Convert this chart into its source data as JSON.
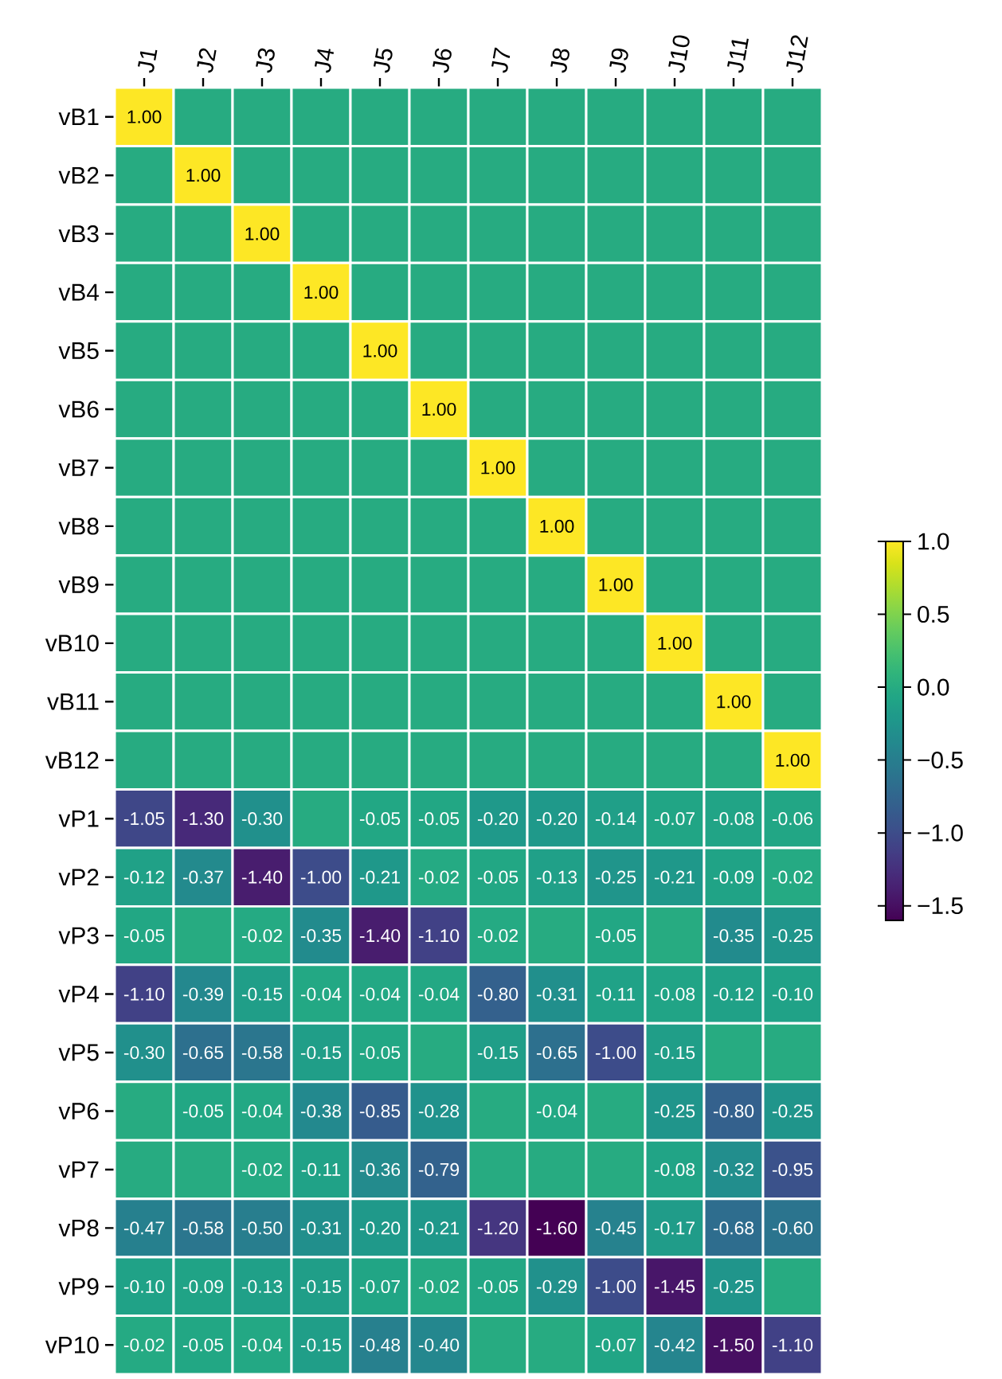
{
  "chart_data": {
    "type": "heatmap",
    "categories": [
      "J1",
      "J2",
      "J3",
      "J4",
      "J5",
      "J6",
      "J7",
      "J8",
      "J9",
      "J10",
      "J11",
      "J12"
    ],
    "y_categories": [
      "vB1",
      "vB2",
      "vB3",
      "vB4",
      "vB5",
      "vB6",
      "vB7",
      "vB8",
      "vB9",
      "vB10",
      "vB11",
      "vB12",
      "vP1",
      "vP2",
      "vP3",
      "vP4",
      "vP5",
      "vP6",
      "vP7",
      "vP8",
      "vP9",
      "vP10"
    ],
    "cells": [
      [
        1.0,
        0,
        0,
        0,
        0,
        0,
        0,
        0,
        0,
        0,
        0,
        0
      ],
      [
        0,
        1.0,
        0,
        0,
        0,
        0,
        0,
        0,
        0,
        0,
        0,
        0
      ],
      [
        0,
        0,
        1.0,
        0,
        0,
        0,
        0,
        0,
        0,
        0,
        0,
        0
      ],
      [
        0,
        0,
        0,
        1.0,
        0,
        0,
        0,
        0,
        0,
        0,
        0,
        0
      ],
      [
        0,
        0,
        0,
        0,
        1.0,
        0,
        0,
        0,
        0,
        0,
        0,
        0
      ],
      [
        0,
        0,
        0,
        0,
        0,
        1.0,
        0,
        0,
        0,
        0,
        0,
        0
      ],
      [
        0,
        0,
        0,
        0,
        0,
        0,
        1.0,
        0,
        0,
        0,
        0,
        0
      ],
      [
        0,
        0,
        0,
        0,
        0,
        0,
        0,
        1.0,
        0,
        0,
        0,
        0
      ],
      [
        0,
        0,
        0,
        0,
        0,
        0,
        0,
        0,
        1.0,
        0,
        0,
        0
      ],
      [
        0,
        0,
        0,
        0,
        0,
        0,
        0,
        0,
        0,
        1.0,
        0,
        0
      ],
      [
        0,
        0,
        0,
        0,
        0,
        0,
        0,
        0,
        0,
        0,
        1.0,
        0
      ],
      [
        0,
        0,
        0,
        0,
        0,
        0,
        0,
        0,
        0,
        0,
        0,
        1.0
      ],
      [
        -1.05,
        -1.3,
        -0.3,
        0,
        -0.05,
        -0.05,
        -0.2,
        -0.2,
        -0.14,
        -0.07,
        -0.08,
        -0.06
      ],
      [
        -0.12,
        -0.37,
        -1.4,
        -1.0,
        -0.21,
        -0.02,
        -0.05,
        -0.13,
        -0.25,
        -0.21,
        -0.09,
        -0.02
      ],
      [
        -0.05,
        0,
        -0.02,
        -0.35,
        -1.4,
        -1.1,
        -0.02,
        0,
        -0.05,
        0,
        -0.35,
        -0.25
      ],
      [
        -1.1,
        -0.39,
        -0.15,
        -0.04,
        -0.04,
        -0.04,
        -0.8,
        -0.31,
        -0.11,
        -0.08,
        -0.12,
        -0.1
      ],
      [
        -0.3,
        -0.65,
        -0.58,
        -0.15,
        -0.05,
        0,
        -0.15,
        -0.65,
        -1.0,
        -0.15,
        0,
        0
      ],
      [
        0,
        -0.05,
        -0.04,
        -0.38,
        -0.85,
        -0.28,
        0,
        -0.04,
        0,
        -0.25,
        -0.8,
        -0.25
      ],
      [
        0,
        0,
        -0.02,
        -0.11,
        -0.36,
        -0.79,
        0,
        0,
        0,
        -0.08,
        -0.32,
        -0.95
      ],
      [
        -0.47,
        -0.58,
        -0.5,
        -0.31,
        -0.2,
        -0.21,
        -1.2,
        -1.6,
        -0.45,
        -0.17,
        -0.68,
        -0.6
      ],
      [
        -0.1,
        -0.09,
        -0.13,
        -0.15,
        -0.07,
        -0.02,
        -0.05,
        -0.29,
        -1.0,
        -1.45,
        -0.25,
        0
      ],
      [
        -0.02,
        -0.05,
        -0.04,
        -0.15,
        -0.48,
        -0.4,
        0,
        0,
        -0.07,
        -0.42,
        -1.5,
        -1.1
      ]
    ],
    "cell_labels": [
      [
        "1.00",
        null,
        null,
        null,
        null,
        null,
        null,
        null,
        null,
        null,
        null,
        null
      ],
      [
        null,
        "1.00",
        null,
        null,
        null,
        null,
        null,
        null,
        null,
        null,
        null,
        null
      ],
      [
        null,
        null,
        "1.00",
        null,
        null,
        null,
        null,
        null,
        null,
        null,
        null,
        null
      ],
      [
        null,
        null,
        null,
        "1.00",
        null,
        null,
        null,
        null,
        null,
        null,
        null,
        null
      ],
      [
        null,
        null,
        null,
        null,
        "1.00",
        null,
        null,
        null,
        null,
        null,
        null,
        null
      ],
      [
        null,
        null,
        null,
        null,
        null,
        "1.00",
        null,
        null,
        null,
        null,
        null,
        null
      ],
      [
        null,
        null,
        null,
        null,
        null,
        null,
        "1.00",
        null,
        null,
        null,
        null,
        null
      ],
      [
        null,
        null,
        null,
        null,
        null,
        null,
        null,
        "1.00",
        null,
        null,
        null,
        null
      ],
      [
        null,
        null,
        null,
        null,
        null,
        null,
        null,
        null,
        "1.00",
        null,
        null,
        null
      ],
      [
        null,
        null,
        null,
        null,
        null,
        null,
        null,
        null,
        null,
        "1.00",
        null,
        null
      ],
      [
        null,
        null,
        null,
        null,
        null,
        null,
        null,
        null,
        null,
        null,
        "1.00",
        null
      ],
      [
        null,
        null,
        null,
        null,
        null,
        null,
        null,
        null,
        null,
        null,
        null,
        "1.00"
      ],
      [
        "-1.05",
        "-1.30",
        "-0.30",
        null,
        "-0.05",
        "-0.05",
        "-0.20",
        "-0.20",
        "-0.14",
        "-0.07",
        "-0.08",
        "-0.06"
      ],
      [
        "-0.12",
        "-0.37",
        "-1.40",
        "-1.00",
        "-0.21",
        "-0.02",
        "-0.05",
        "-0.13",
        "-0.25",
        "-0.21",
        "-0.09",
        "-0.02"
      ],
      [
        "-0.05",
        null,
        "-0.02",
        "-0.35",
        "-1.40",
        "-1.10",
        "-0.02",
        null,
        "-0.05",
        null,
        "-0.35",
        "-0.25"
      ],
      [
        "-1.10",
        "-0.39",
        "-0.15",
        "-0.04",
        "-0.04",
        "-0.04",
        "-0.80",
        "-0.31",
        "-0.11",
        "-0.08",
        "-0.12",
        "-0.10"
      ],
      [
        "-0.30",
        "-0.65",
        "-0.58",
        "-0.15",
        "-0.05",
        null,
        "-0.15",
        "-0.65",
        "-1.00",
        "-0.15",
        null,
        null
      ],
      [
        null,
        "-0.05",
        "-0.04",
        "-0.38",
        "-0.85",
        "-0.28",
        null,
        "-0.04",
        null,
        "-0.25",
        "-0.80",
        "-0.25"
      ],
      [
        null,
        null,
        "-0.02",
        "-0.11",
        "-0.36",
        "-0.79",
        null,
        null,
        null,
        "-0.08",
        "-0.32",
        "-0.95"
      ],
      [
        "-0.47",
        "-0.58",
        "-0.50",
        "-0.31",
        "-0.20",
        "-0.21",
        "-1.20",
        "-1.60",
        "-0.45",
        "-0.17",
        "-0.68",
        "-0.60"
      ],
      [
        "-0.10",
        "-0.09",
        "-0.13",
        "-0.15",
        "-0.07",
        "-0.02",
        "-0.05",
        "-0.29",
        "-1.00",
        "-1.45",
        "-0.25",
        null
      ],
      [
        "-0.02",
        "-0.05",
        "-0.04",
        "-0.15",
        "-0.48",
        "-0.40",
        null,
        null,
        "-0.07",
        "-0.42",
        "-1.50",
        "-1.10"
      ]
    ],
    "clim": [
      -1.6,
      1.0
    ],
    "cticks": [
      {
        "value": -1.5,
        "label": "−1.5"
      },
      {
        "value": -1.0,
        "label": "−1.0"
      },
      {
        "value": -0.5,
        "label": "−0.5"
      },
      {
        "value": 0.0,
        "label": "0.0"
      },
      {
        "value": 0.5,
        "label": "0.5"
      },
      {
        "value": 1.0,
        "label": "1.0"
      }
    ]
  }
}
